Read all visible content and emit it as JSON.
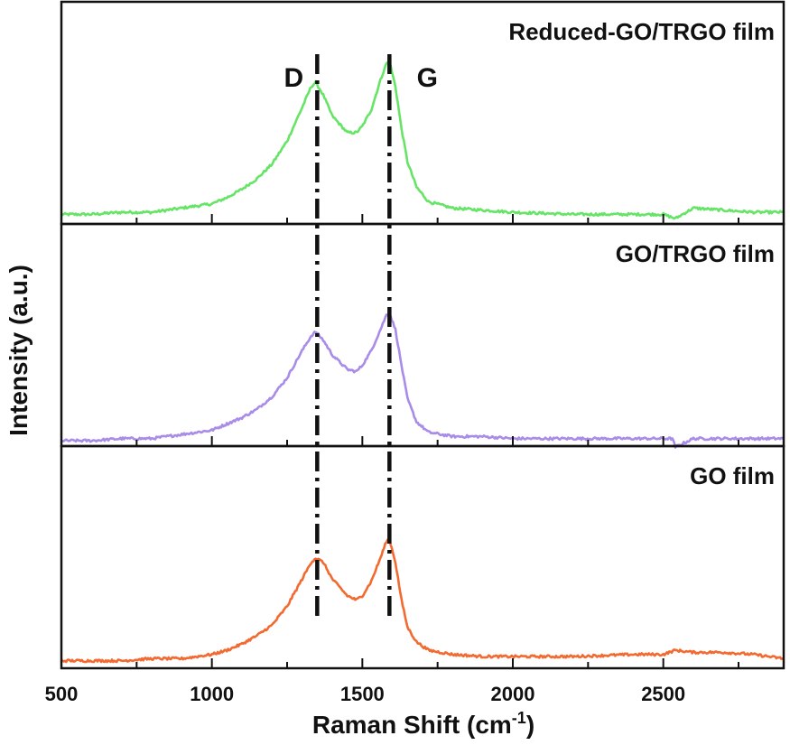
{
  "chart_data": {
    "type": "line",
    "xlabel_main": "Raman Shift (cm",
    "xlabel_sup": "-1",
    "xlabel_end": ")",
    "ylabel": "Intensity (a.u.)",
    "xlim": [
      500,
      2900
    ],
    "x_ticks": [
      500,
      1000,
      1500,
      2000,
      2500
    ],
    "x_tick_labels": [
      "500",
      "1000",
      "1500",
      "2000",
      "2500"
    ],
    "peak_lines": [
      {
        "label": "D",
        "x": 1350
      },
      {
        "label": "G",
        "x": 1590
      }
    ],
    "grid": false,
    "series": [
      {
        "name": "Reduced-GO/TRGO film",
        "color": "#66e466",
        "x": [
          500,
          600,
          700,
          800,
          900,
          1000,
          1050,
          1100,
          1150,
          1200,
          1250,
          1300,
          1330,
          1345,
          1370,
          1400,
          1450,
          1480,
          1500,
          1530,
          1560,
          1580,
          1590,
          1610,
          1630,
          1650,
          1680,
          1720,
          1800,
          1900,
          2000,
          2200,
          2400,
          2500,
          2540,
          2600,
          2700,
          2800,
          2900
        ],
        "y": [
          0.02,
          0.02,
          0.03,
          0.03,
          0.05,
          0.07,
          0.1,
          0.14,
          0.19,
          0.26,
          0.37,
          0.53,
          0.63,
          0.65,
          0.59,
          0.49,
          0.41,
          0.41,
          0.44,
          0.52,
          0.66,
          0.74,
          0.75,
          0.63,
          0.43,
          0.27,
          0.15,
          0.08,
          0.05,
          0.04,
          0.03,
          0.02,
          0.02,
          0.02,
          0.0,
          0.05,
          0.04,
          0.03,
          0.03
        ]
      },
      {
        "name": "GO/TRGO film",
        "color": "#a98be8",
        "x": [
          500,
          600,
          700,
          800,
          900,
          1000,
          1050,
          1100,
          1150,
          1200,
          1250,
          1300,
          1330,
          1345,
          1370,
          1400,
          1450,
          1480,
          1500,
          1530,
          1560,
          1580,
          1590,
          1610,
          1630,
          1650,
          1680,
          1720,
          1800,
          1900,
          2000,
          2200,
          2400,
          2500,
          2530,
          2540,
          2600,
          2700,
          2800,
          2900
        ],
        "y": [
          0.0,
          0.0,
          0.01,
          0.01,
          0.03,
          0.05,
          0.08,
          0.11,
          0.15,
          0.21,
          0.3,
          0.43,
          0.5,
          0.52,
          0.48,
          0.41,
          0.34,
          0.33,
          0.36,
          0.43,
          0.53,
          0.6,
          0.61,
          0.53,
          0.36,
          0.2,
          0.09,
          0.04,
          0.02,
          0.02,
          0.01,
          0.01,
          0.01,
          0.01,
          0.01,
          -0.03,
          0.01,
          0.01,
          0.01,
          0.01
        ]
      },
      {
        "name": "GO film",
        "color": "#f26a30",
        "x": [
          500,
          600,
          700,
          800,
          900,
          1000,
          1050,
          1100,
          1150,
          1200,
          1250,
          1300,
          1330,
          1345,
          1370,
          1400,
          1450,
          1480,
          1500,
          1530,
          1560,
          1580,
          1590,
          1610,
          1630,
          1650,
          1680,
          1720,
          1800,
          1900,
          2000,
          2200,
          2400,
          2500,
          2540,
          2600,
          2700,
          2800,
          2900
        ],
        "y": [
          0.01,
          0.01,
          0.01,
          0.02,
          0.02,
          0.04,
          0.06,
          0.09,
          0.13,
          0.18,
          0.27,
          0.4,
          0.48,
          0.5,
          0.48,
          0.4,
          0.32,
          0.3,
          0.32,
          0.39,
          0.5,
          0.58,
          0.59,
          0.48,
          0.3,
          0.17,
          0.1,
          0.06,
          0.04,
          0.03,
          0.03,
          0.03,
          0.04,
          0.04,
          0.06,
          0.05,
          0.05,
          0.04,
          0.02
        ]
      }
    ]
  }
}
